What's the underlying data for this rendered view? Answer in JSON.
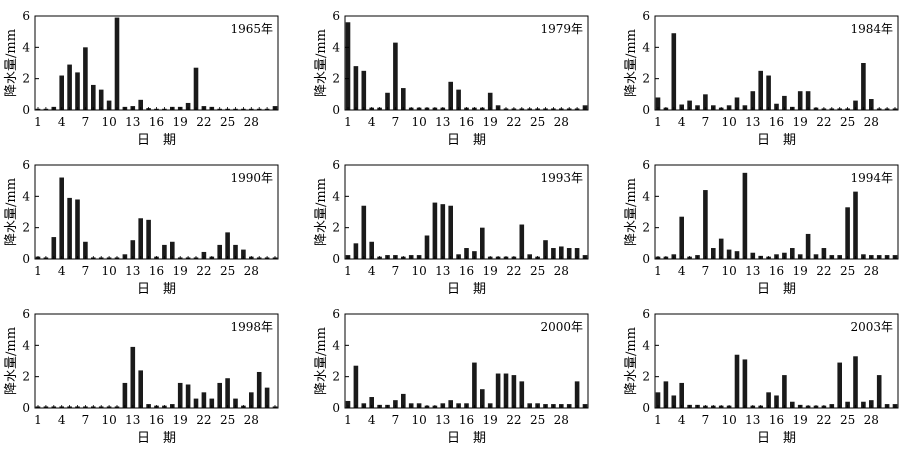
{
  "figure": {
    "ylabel": "降水量/mm",
    "xlabel": "日　期",
    "colors": {
      "bar": "#1a1a1a",
      "axis": "#000000",
      "background": "#ffffff"
    }
  },
  "chart_data": [
    {
      "type": "bar",
      "title": "1965年",
      "xlabel": "日　期",
      "ylabel": "降水量/mm",
      "xlim": [
        1,
        31
      ],
      "ylim": [
        0,
        6
      ],
      "xticks": [
        "1",
        "4",
        "7",
        "10",
        "13",
        "16",
        "19",
        "22",
        "25",
        "28"
      ],
      "yticks": [
        "0",
        "2",
        "4",
        "6"
      ],
      "x": [
        1,
        2,
        3,
        4,
        5,
        6,
        7,
        8,
        9,
        10,
        11,
        12,
        13,
        14,
        15,
        16,
        17,
        18,
        19,
        20,
        21,
        22,
        23,
        24,
        25,
        26,
        27,
        28,
        29,
        30,
        31
      ],
      "values": [
        0.08,
        0.08,
        0.2,
        2.2,
        2.9,
        2.4,
        4.0,
        1.6,
        1.3,
        0.6,
        5.9,
        0.2,
        0.25,
        0.65,
        0.12,
        0.08,
        0.08,
        0.2,
        0.2,
        0.45,
        2.7,
        0.25,
        0.2,
        0.08,
        0.08,
        0.08,
        0.08,
        0.08,
        0.08,
        0.08,
        0.25
      ]
    },
    {
      "type": "bar",
      "title": "1979年",
      "xlabel": "日　期",
      "ylabel": "降水量/mm",
      "xlim": [
        1,
        31
      ],
      "ylim": [
        0,
        6
      ],
      "xticks": [
        "1",
        "4",
        "7",
        "10",
        "13",
        "16",
        "19",
        "22",
        "25",
        "28"
      ],
      "yticks": [
        "0",
        "2",
        "4",
        "6"
      ],
      "x": [
        1,
        2,
        3,
        4,
        5,
        6,
        7,
        8,
        9,
        10,
        11,
        12,
        13,
        14,
        15,
        16,
        17,
        18,
        19,
        20,
        21,
        22,
        23,
        24,
        25,
        26,
        27,
        28,
        29,
        30,
        31
      ],
      "values": [
        5.6,
        2.8,
        2.5,
        0.15,
        0.15,
        1.1,
        4.3,
        1.4,
        0.15,
        0.15,
        0.15,
        0.15,
        0.15,
        1.8,
        1.3,
        0.15,
        0.15,
        0.15,
        1.1,
        0.3,
        0.1,
        0.1,
        0.1,
        0.1,
        0.1,
        0.1,
        0.1,
        0.1,
        0.1,
        0.1,
        0.3
      ]
    },
    {
      "type": "bar",
      "title": "1984年",
      "xlabel": "日　期",
      "ylabel": "降水量/mm",
      "xlim": [
        1,
        31
      ],
      "ylim": [
        0,
        6
      ],
      "xticks": [
        "1",
        "4",
        "7",
        "10",
        "13",
        "16",
        "19",
        "22",
        "25",
        "28"
      ],
      "yticks": [
        "0",
        "2",
        "4",
        "6"
      ],
      "x": [
        1,
        2,
        3,
        4,
        5,
        6,
        7,
        8,
        9,
        10,
        11,
        12,
        13,
        14,
        15,
        16,
        17,
        18,
        19,
        20,
        21,
        22,
        23,
        24,
        25,
        26,
        27,
        28,
        29,
        30,
        31
      ],
      "values": [
        0.8,
        0.15,
        4.9,
        0.35,
        0.6,
        0.3,
        1.0,
        0.3,
        0.15,
        0.3,
        0.8,
        0.3,
        1.2,
        2.5,
        2.2,
        0.4,
        0.9,
        0.2,
        1.2,
        1.2,
        0.15,
        0.1,
        0.1,
        0.1,
        0.1,
        0.6,
        3.0,
        0.7,
        0.1,
        0.1,
        0.1
      ]
    },
    {
      "type": "bar",
      "title": "1990年",
      "xlabel": "日　期",
      "ylabel": "降水量/mm",
      "xlim": [
        1,
        31
      ],
      "ylim": [
        0,
        6
      ],
      "xticks": [
        "1",
        "4",
        "7",
        "10",
        "13",
        "16",
        "19",
        "22",
        "25",
        "28"
      ],
      "yticks": [
        "0",
        "2",
        "4",
        "6"
      ],
      "x": [
        1,
        2,
        3,
        4,
        5,
        6,
        7,
        8,
        9,
        10,
        11,
        12,
        13,
        14,
        15,
        16,
        17,
        18,
        19,
        20,
        21,
        22,
        23,
        24,
        25,
        26,
        27,
        28,
        29,
        30,
        31
      ],
      "values": [
        0.15,
        0.1,
        1.4,
        5.2,
        3.9,
        3.8,
        1.1,
        0.1,
        0.1,
        0.1,
        0.1,
        0.3,
        1.2,
        2.6,
        2.5,
        0.15,
        0.9,
        1.1,
        0.1,
        0.1,
        0.1,
        0.45,
        0.15,
        0.9,
        1.7,
        0.9,
        0.6,
        0.15,
        0.1,
        0.1,
        0.1
      ]
    },
    {
      "type": "bar",
      "title": "1993年",
      "xlabel": "日　期",
      "ylabel": "降水量/mm",
      "xlim": [
        1,
        31
      ],
      "ylim": [
        0,
        6
      ],
      "xticks": [
        "1",
        "4",
        "7",
        "10",
        "13",
        "16",
        "19",
        "22",
        "25",
        "28"
      ],
      "yticks": [
        "0",
        "2",
        "4",
        "6"
      ],
      "x": [
        1,
        2,
        3,
        4,
        5,
        6,
        7,
        8,
        9,
        10,
        11,
        12,
        13,
        14,
        15,
        16,
        17,
        18,
        19,
        20,
        21,
        22,
        23,
        24,
        25,
        26,
        27,
        28,
        29,
        30,
        31
      ],
      "values": [
        0.25,
        1.0,
        3.4,
        1.1,
        0.15,
        0.25,
        0.25,
        0.15,
        0.25,
        0.25,
        1.5,
        3.6,
        3.5,
        3.4,
        0.3,
        0.7,
        0.5,
        2.0,
        0.15,
        0.15,
        0.15,
        0.15,
        2.2,
        0.3,
        0.15,
        1.2,
        0.7,
        0.8,
        0.7,
        0.7,
        0.25
      ]
    },
    {
      "type": "bar",
      "title": "1994年",
      "xlabel": "日　期",
      "ylabel": "降水量/mm",
      "xlim": [
        1,
        31
      ],
      "ylim": [
        0,
        6
      ],
      "xticks": [
        "1",
        "4",
        "7",
        "10",
        "13",
        "16",
        "19",
        "22",
        "25",
        "28"
      ],
      "yticks": [
        "0",
        "2",
        "4",
        "6"
      ],
      "x": [
        1,
        2,
        3,
        4,
        5,
        6,
        7,
        8,
        9,
        10,
        11,
        12,
        13,
        14,
        15,
        16,
        17,
        18,
        19,
        20,
        21,
        22,
        23,
        24,
        25,
        26,
        27,
        28,
        29,
        30,
        31
      ],
      "values": [
        0.15,
        0.15,
        0.3,
        2.7,
        0.15,
        0.25,
        4.4,
        0.7,
        1.3,
        0.6,
        0.5,
        5.5,
        0.4,
        0.2,
        0.15,
        0.3,
        0.4,
        0.7,
        0.3,
        1.6,
        0.3,
        0.7,
        0.25,
        0.25,
        3.3,
        4.3,
        0.3,
        0.25,
        0.25,
        0.25,
        0.25
      ]
    },
    {
      "type": "bar",
      "title": "1998年",
      "xlabel": "日　期",
      "ylabel": "降水量/mm",
      "xlim": [
        1,
        31
      ],
      "ylim": [
        0,
        6
      ],
      "xticks": [
        "1",
        "4",
        "7",
        "10",
        "13",
        "16",
        "19",
        "22",
        "25",
        "28"
      ],
      "yticks": [
        "0",
        "2",
        "4",
        "6"
      ],
      "x": [
        1,
        2,
        3,
        4,
        5,
        6,
        7,
        8,
        9,
        10,
        11,
        12,
        13,
        14,
        15,
        16,
        17,
        18,
        19,
        20,
        21,
        22,
        23,
        24,
        25,
        26,
        27,
        28,
        29,
        30,
        31
      ],
      "values": [
        0.1,
        0.1,
        0.1,
        0.1,
        0.1,
        0.1,
        0.1,
        0.1,
        0.1,
        0.1,
        0.1,
        1.6,
        3.9,
        2.4,
        0.25,
        0.15,
        0.15,
        0.25,
        1.6,
        1.5,
        0.6,
        1.0,
        0.6,
        1.6,
        1.9,
        0.6,
        0.15,
        1.0,
        2.3,
        1.3,
        0.1
      ]
    },
    {
      "type": "bar",
      "title": "2000年",
      "xlabel": "日　期",
      "ylabel": "降水量/mm",
      "xlim": [
        1,
        31
      ],
      "ylim": [
        0,
        6
      ],
      "xticks": [
        "1",
        "4",
        "7",
        "10",
        "13",
        "16",
        "19",
        "22",
        "25",
        "28"
      ],
      "yticks": [
        "0",
        "2",
        "4",
        "6"
      ],
      "x": [
        1,
        2,
        3,
        4,
        5,
        6,
        7,
        8,
        9,
        10,
        11,
        12,
        13,
        14,
        15,
        16,
        17,
        18,
        19,
        20,
        21,
        22,
        23,
        24,
        25,
        26,
        27,
        28,
        29,
        30,
        31
      ],
      "values": [
        0.45,
        2.7,
        0.3,
        0.7,
        0.2,
        0.2,
        0.5,
        0.9,
        0.3,
        0.3,
        0.15,
        0.15,
        0.3,
        0.5,
        0.3,
        0.3,
        2.9,
        1.2,
        0.3,
        2.2,
        2.2,
        2.1,
        1.7,
        0.3,
        0.3,
        0.25,
        0.25,
        0.25,
        0.25,
        1.7,
        0.25
      ]
    },
    {
      "type": "bar",
      "title": "2003年",
      "xlabel": "日　期",
      "ylabel": "降水量/mm",
      "xlim": [
        1,
        31
      ],
      "ylim": [
        0,
        6
      ],
      "xticks": [
        "1",
        "4",
        "7",
        "10",
        "13",
        "16",
        "19",
        "22",
        "25",
        "28"
      ],
      "yticks": [
        "0",
        "2",
        "4",
        "6"
      ],
      "x": [
        1,
        2,
        3,
        4,
        5,
        6,
        7,
        8,
        9,
        10,
        11,
        12,
        13,
        14,
        15,
        16,
        17,
        18,
        19,
        20,
        21,
        22,
        23,
        24,
        25,
        26,
        27,
        28,
        29,
        30,
        31
      ],
      "values": [
        1.0,
        1.7,
        0.8,
        1.6,
        0.2,
        0.2,
        0.15,
        0.15,
        0.15,
        0.15,
        3.4,
        3.1,
        0.15,
        0.15,
        1.0,
        0.8,
        2.1,
        0.4,
        0.2,
        0.15,
        0.15,
        0.15,
        0.25,
        2.9,
        0.4,
        3.3,
        0.4,
        0.5,
        2.1,
        0.25,
        0.25
      ]
    }
  ]
}
